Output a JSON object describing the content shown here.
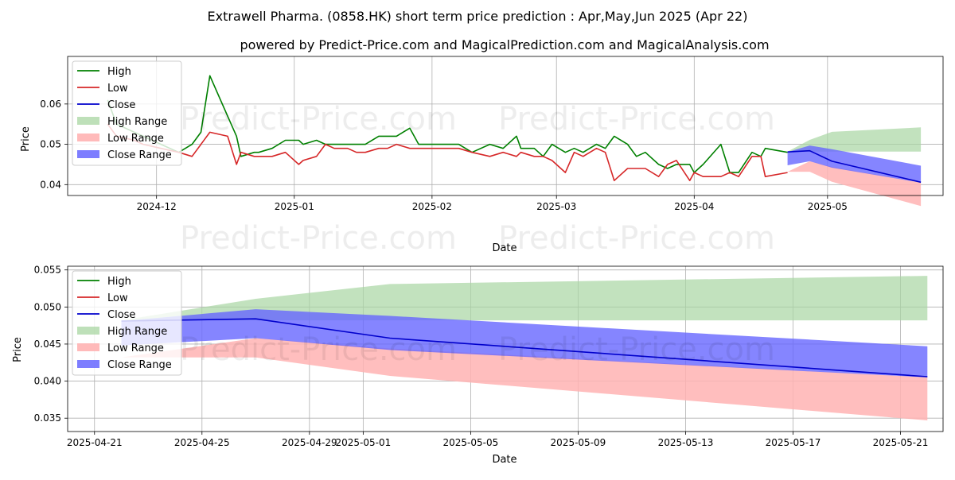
{
  "title": "Extrawell Pharma. (0858.HK) short term price prediction : Apr,May,Jun 2025 (Apr 22)",
  "subtitle": "powered by Predict-Price.com and MagicalPrediction.com and MagicalAnalysis.com",
  "watermark": "Predict-Price.com",
  "colors": {
    "high": "#008000",
    "low": "#d62728",
    "close": "#0000cc",
    "high_range": "#a8d5a2",
    "low_range": "#ffb3b3",
    "close_range": "#6666ff"
  },
  "legend": [
    "High",
    "Low",
    "Close",
    "High Range",
    "Low Range",
    "Close Range"
  ],
  "chart_data": [
    {
      "type": "line",
      "xlabel": "Date",
      "ylabel": "Price",
      "xlim": [
        "2024-11-11",
        "2025-05-27"
      ],
      "ylim": [
        0.0373,
        0.0718
      ],
      "xticks": [
        "2024-12",
        "2025-01",
        "2025-02",
        "2025-03",
        "2025-04",
        "2025-05"
      ],
      "xtick_dates": [
        "2024-12-01",
        "2025-01-01",
        "2025-02-01",
        "2025-03-01",
        "2025-04-01",
        "2025-05-01"
      ],
      "yticks": [
        0.04,
        0.05,
        0.06
      ],
      "ytick_labels": [
        "0.04",
        "0.05",
        "0.06"
      ],
      "legend_position": "upper-left",
      "grid": true,
      "series": [
        {
          "name": "High",
          "x": [
            "2024-11-20",
            "2024-11-22",
            "2024-11-26",
            "2024-11-28",
            "2024-12-02",
            "2024-12-06",
            "2024-12-09",
            "2024-12-11",
            "2024-12-13",
            "2024-12-17",
            "2024-12-19",
            "2024-12-20",
            "2024-12-23",
            "2024-12-24",
            "2024-12-27",
            "2024-12-30",
            "2025-01-02",
            "2025-01-03",
            "2025-01-06",
            "2025-01-08",
            "2025-01-10",
            "2025-01-13",
            "2025-01-15",
            "2025-01-17",
            "2025-01-20",
            "2025-01-22",
            "2025-01-24",
            "2025-01-27",
            "2025-01-29",
            "2025-02-03",
            "2025-02-07",
            "2025-02-10",
            "2025-02-14",
            "2025-02-17",
            "2025-02-20",
            "2025-02-21",
            "2025-02-24",
            "2025-02-26",
            "2025-02-28",
            "2025-03-03",
            "2025-03-05",
            "2025-03-07",
            "2025-03-10",
            "2025-03-12",
            "2025-03-14",
            "2025-03-17",
            "2025-03-19",
            "2025-03-21",
            "2025-03-24",
            "2025-03-26",
            "2025-03-28",
            "2025-03-31",
            "2025-04-01",
            "2025-04-03",
            "2025-04-07",
            "2025-04-09",
            "2025-04-11",
            "2025-04-14",
            "2025-04-16",
            "2025-04-17",
            "2025-04-22"
          ],
          "values": [
            0.061,
            0.055,
            0.053,
            0.052,
            0.05,
            0.048,
            0.05,
            0.053,
            0.067,
            0.057,
            0.052,
            0.047,
            0.048,
            0.048,
            0.049,
            0.051,
            0.051,
            0.05,
            0.051,
            0.05,
            0.05,
            0.05,
            0.05,
            0.05,
            0.052,
            0.052,
            0.052,
            0.054,
            0.05,
            0.05,
            0.05,
            0.048,
            0.05,
            0.049,
            0.052,
            0.049,
            0.049,
            0.047,
            0.05,
            0.048,
            0.049,
            0.048,
            0.05,
            0.049,
            0.052,
            0.05,
            0.047,
            0.048,
            0.045,
            0.044,
            0.045,
            0.045,
            0.043,
            0.045,
            0.05,
            0.043,
            0.043,
            0.048,
            0.047,
            0.049,
            0.048
          ]
        },
        {
          "name": "Low",
          "x": [
            "2024-11-20",
            "2024-11-22",
            "2024-11-26",
            "2024-11-28",
            "2024-12-02",
            "2024-12-06",
            "2024-12-09",
            "2024-12-11",
            "2024-12-13",
            "2024-12-17",
            "2024-12-19",
            "2024-12-20",
            "2024-12-23",
            "2024-12-24",
            "2024-12-27",
            "2024-12-30",
            "2025-01-02",
            "2025-01-03",
            "2025-01-06",
            "2025-01-08",
            "2025-01-10",
            "2025-01-13",
            "2025-01-15",
            "2025-01-17",
            "2025-01-20",
            "2025-01-22",
            "2025-01-24",
            "2025-01-27",
            "2025-01-29",
            "2025-02-03",
            "2025-02-07",
            "2025-02-10",
            "2025-02-14",
            "2025-02-17",
            "2025-02-20",
            "2025-02-21",
            "2025-02-24",
            "2025-02-26",
            "2025-02-28",
            "2025-03-03",
            "2025-03-05",
            "2025-03-07",
            "2025-03-10",
            "2025-03-12",
            "2025-03-14",
            "2025-03-17",
            "2025-03-19",
            "2025-03-21",
            "2025-03-24",
            "2025-03-26",
            "2025-03-28",
            "2025-03-31",
            "2025-04-01",
            "2025-04-03",
            "2025-04-07",
            "2025-04-09",
            "2025-04-11",
            "2025-04-14",
            "2025-04-16",
            "2025-04-17",
            "2025-04-22"
          ],
          "values": [
            0.055,
            0.052,
            0.051,
            0.05,
            0.049,
            0.048,
            0.047,
            0.05,
            0.053,
            0.052,
            0.045,
            0.048,
            0.047,
            0.047,
            0.047,
            0.048,
            0.045,
            0.046,
            0.047,
            0.05,
            0.049,
            0.049,
            0.048,
            0.048,
            0.049,
            0.049,
            0.05,
            0.049,
            0.049,
            0.049,
            0.049,
            0.048,
            0.047,
            0.048,
            0.047,
            0.048,
            0.047,
            0.047,
            0.046,
            0.043,
            0.048,
            0.047,
            0.049,
            0.048,
            0.041,
            0.044,
            0.044,
            0.044,
            0.042,
            0.045,
            0.046,
            0.041,
            0.043,
            0.042,
            0.042,
            0.043,
            0.042,
            0.047,
            0.047,
            0.042,
            0.043
          ]
        },
        {
          "name": "Close",
          "x": [
            "2025-04-22",
            "2025-04-27",
            "2025-05-02",
            "2025-05-22"
          ],
          "values": [
            0.0481,
            0.0484,
            0.0458,
            0.0406
          ]
        }
      ],
      "ranges": [
        {
          "name": "High Range",
          "x": [
            "2025-04-22",
            "2025-04-27",
            "2025-05-02",
            "2025-05-22"
          ],
          "upper": [
            0.0482,
            0.0511,
            0.0531,
            0.0542
          ],
          "lower": [
            0.0482,
            0.0482,
            0.0482,
            0.0482
          ]
        },
        {
          "name": "Low Range",
          "x": [
            "2025-04-22",
            "2025-04-27",
            "2025-05-02",
            "2025-05-22"
          ],
          "upper": [
            0.0432,
            0.0458,
            0.0444,
            0.0405
          ],
          "lower": [
            0.0432,
            0.0432,
            0.0407,
            0.0347
          ]
        },
        {
          "name": "Close Range",
          "x": [
            "2025-04-22",
            "2025-04-27",
            "2025-05-02",
            "2025-05-22"
          ],
          "upper": [
            0.0481,
            0.0497,
            0.0488,
            0.0447
          ],
          "lower": [
            0.0448,
            0.0458,
            0.0442,
            0.0405
          ]
        }
      ]
    },
    {
      "type": "line",
      "xlabel": "Date",
      "ylabel": "Price",
      "xlim": [
        "2025-04-20",
        "2025-05-22 14:00"
      ],
      "ylim": [
        0.0332,
        0.0555
      ],
      "xticks": [
        "2025-04-21",
        "2025-04-25",
        "2025-04-29",
        "2025-05-01",
        "2025-05-05",
        "2025-05-09",
        "2025-05-13",
        "2025-05-17",
        "2025-05-21"
      ],
      "xtick_dates": [
        "2025-04-21",
        "2025-04-25",
        "2025-04-29",
        "2025-05-01",
        "2025-05-05",
        "2025-05-09",
        "2025-05-13",
        "2025-05-17",
        "2025-05-21"
      ],
      "yticks": [
        0.035,
        0.04,
        0.045,
        0.05,
        0.055
      ],
      "ytick_labels": [
        "0.035",
        "0.040",
        "0.045",
        "0.050",
        "0.055"
      ],
      "legend_position": "upper-left",
      "grid": true,
      "series": [
        {
          "name": "High",
          "x": [],
          "values": []
        },
        {
          "name": "Low",
          "x": [],
          "values": []
        },
        {
          "name": "Close",
          "x": [
            "2025-04-22",
            "2025-04-27",
            "2025-05-02",
            "2025-05-22"
          ],
          "values": [
            0.0481,
            0.0484,
            0.0458,
            0.0406
          ]
        }
      ],
      "ranges": [
        {
          "name": "High Range",
          "x": [
            "2025-04-22",
            "2025-04-27",
            "2025-05-02",
            "2025-05-22"
          ],
          "upper": [
            0.0482,
            0.0511,
            0.0531,
            0.0542
          ],
          "lower": [
            0.0482,
            0.0482,
            0.0482,
            0.0482
          ]
        },
        {
          "name": "Low Range",
          "x": [
            "2025-04-22",
            "2025-04-27",
            "2025-05-02",
            "2025-05-22"
          ],
          "upper": [
            0.0432,
            0.0458,
            0.0444,
            0.0405
          ],
          "lower": [
            0.0432,
            0.0432,
            0.0407,
            0.0347
          ]
        },
        {
          "name": "Close Range",
          "x": [
            "2025-04-22",
            "2025-04-27",
            "2025-05-02",
            "2025-05-22"
          ],
          "upper": [
            0.0481,
            0.0497,
            0.0488,
            0.0447
          ],
          "lower": [
            0.0448,
            0.0458,
            0.0442,
            0.0405
          ]
        }
      ]
    }
  ]
}
